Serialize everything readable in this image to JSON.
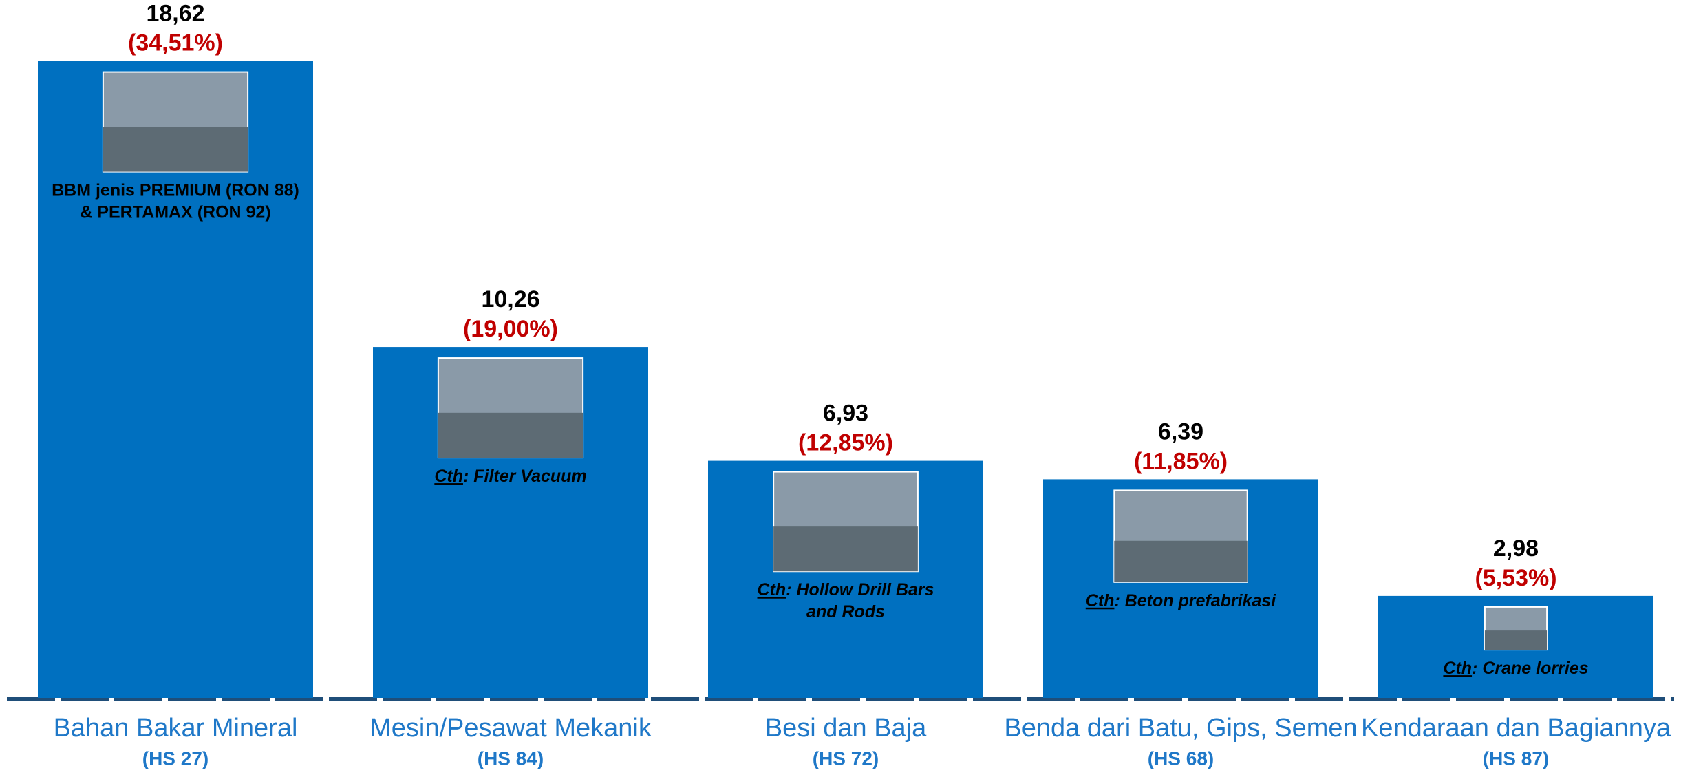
{
  "chart_data": {
    "type": "bar",
    "categories": [
      "Bahan Bakar Mineral",
      "Mesin/Pesawat Mekanik",
      "Besi dan Baja",
      "Benda dari Batu, Gips, Semen",
      "Kendaraan dan Bagiannya"
    ],
    "codes": [
      "(HS 27)",
      "(HS 84)",
      "(HS 72)",
      "(HS 68)",
      "(HS 87)"
    ],
    "values": [
      18.62,
      10.26,
      6.93,
      6.39,
      2.98
    ],
    "value_labels": [
      "18,62",
      "10,26",
      "6,93",
      "6,39",
      "2,98"
    ],
    "shares": [
      34.51,
      19.0,
      12.85,
      11.85,
      5.53
    ],
    "share_labels": [
      "(34,51%)",
      "(19,00%)",
      "(12,85%)",
      "(11,85%)",
      "(5,53%)"
    ],
    "captions": [
      {
        "lines": [
          "BBM jenis PREMIUM (RON 88)",
          "& PERTAMAX (RON 92)"
        ]
      },
      {
        "prefix": "Cth",
        "lines": [
          ": Filter Vacuum"
        ]
      },
      {
        "prefix": "Cth",
        "lines": [
          ": Hollow Drill Bars",
          "and Rods"
        ]
      },
      {
        "prefix": "Cth",
        "lines": [
          ": Beton prefabrikasi"
        ]
      },
      {
        "prefix": "Cth",
        "lines": [
          ": Crane lorries"
        ]
      }
    ],
    "color": "#0070c0",
    "ylim": [
      0,
      20
    ]
  }
}
